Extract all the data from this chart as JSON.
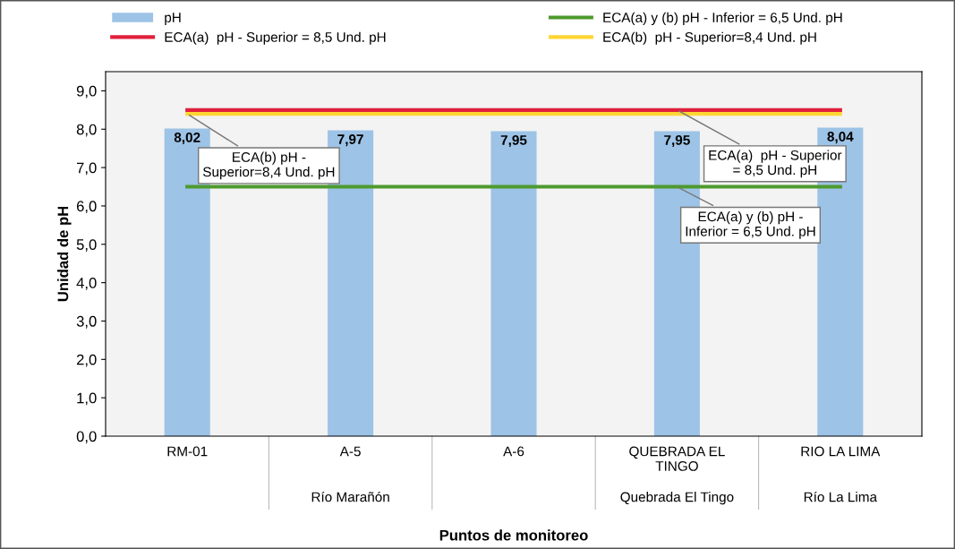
{
  "chart_data": {
    "type": "bar",
    "xlabel": "Puntos de monitoreo",
    "ylabel": "Unidad de pH",
    "categories": [
      "RM-01",
      "A-5",
      "A-6",
      "QUEBRADA EL\nTINGO",
      "RIO LA LIMA"
    ],
    "series": [
      {
        "name": "pH",
        "color": "#9dc3e6",
        "values": [
          8.02,
          7.97,
          7.95,
          7.95,
          8.04
        ],
        "value_labels": [
          "8,02",
          "7,97",
          "7,95",
          "7,95",
          "8,04"
        ]
      },
      {
        "name": "ECA(a)  pH - Superior = 8,5 Und. pH",
        "type": "line",
        "color": "#e0203c",
        "values": [
          8.5,
          8.5,
          8.5,
          8.5,
          8.5
        ]
      },
      {
        "name": "ECA(a) y (b) pH - Inferior = 6,5 Und. pH",
        "type": "line",
        "color": "#4e9a2e",
        "values": [
          6.5,
          6.5,
          6.5,
          6.5,
          6.5
        ]
      },
      {
        "name": "ECA(b)  pH - Superior=8,4 Und. pH",
        "type": "line",
        "color": "#ffd633",
        "values": [
          8.4,
          8.4,
          8.4,
          8.4,
          8.4
        ]
      }
    ],
    "ylim": [
      0,
      9.5
    ],
    "yticks": [
      {
        "value": 0,
        "label": "0,0"
      },
      {
        "value": 1,
        "label": "1,0"
      },
      {
        "value": 2,
        "label": "2,0"
      },
      {
        "value": 3,
        "label": "3,0"
      },
      {
        "value": 4,
        "label": "4,0"
      },
      {
        "value": 5,
        "label": "5,0"
      },
      {
        "value": 6,
        "label": "6,0"
      },
      {
        "value": 7,
        "label": "7,0"
      },
      {
        "value": 8,
        "label": "8,0"
      },
      {
        "value": 9,
        "label": "9,0"
      }
    ],
    "annotations": [
      {
        "text": "ECA(b) pH -\nSuperior=8,4 Und. pH",
        "x": "RM-01",
        "y": 8.4
      },
      {
        "text": "ECA(a)  pH - Superior\n= 8,5 Und. pH",
        "x": "QUEBRADA EL\nTINGO",
        "y": 8.5
      },
      {
        "text": "ECA(a) y (b) pH -\nInferior = 6,5 Und. pH",
        "x": "QUEBRADA EL\nTINGO",
        "y": 6.5
      },
      "Río Marañón",
      "Quebrada El Tingo",
      "Río La Lima"
    ],
    "legend": "top",
    "grid": false
  }
}
